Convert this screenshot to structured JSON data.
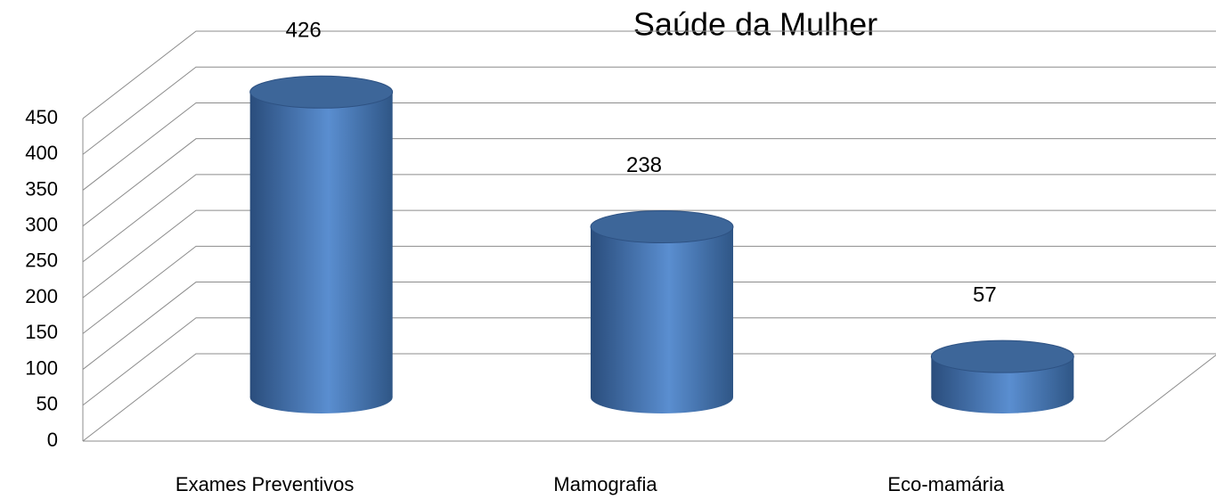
{
  "chart_data": {
    "type": "bar3d",
    "title": "Saúde da Mulher",
    "categories": [
      "Exames Preventivos",
      "Mamografia",
      "Eco-mamária"
    ],
    "values": [
      426,
      238,
      57
    ],
    "color": "#4f81bd",
    "ylim": [
      0,
      450
    ],
    "yticks": [
      0,
      50,
      100,
      150,
      200,
      250,
      300,
      350,
      400,
      450
    ],
    "grid": true
  }
}
